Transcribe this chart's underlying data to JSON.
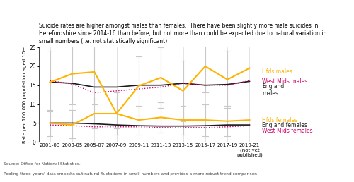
{
  "title": "Suicide rates are higher amongst males than females.  There have been slightly more male suicides in\nHerefordshire since 2014-16 than before, but not more than could be expected due to natural variation in\nsmall numbers (i.e. not statistically significant)",
  "ylabel": "Rate per 100,000 population aged 10+",
  "source_text1": "Source: Office for National Statistics.",
  "source_text2": "Pooling three years' data smooths out natural fluctations in small numbers and provides a more robust trend comparison",
  "x_labels": [
    "2001-03",
    "2003-05",
    "2005-07",
    "2007-09",
    "2009-11",
    "2011-13",
    "2013-15",
    "2015-17",
    "2017-19",
    "2019-21\n(not yet\npublished)"
  ],
  "x_positions": [
    0,
    1,
    2,
    3,
    4,
    5,
    6,
    7,
    8,
    9
  ],
  "ylim": [
    0,
    25
  ],
  "yticks": [
    0,
    5,
    10,
    15,
    20,
    25
  ],
  "hfds_males": [
    15.8,
    18.0,
    18.5,
    7.5,
    14.8,
    17.0,
    13.5,
    20.0,
    16.5,
    19.5
  ],
  "hfds_males_ci_low": [
    8.0,
    10.0,
    10.0,
    2.0,
    7.0,
    9.0,
    5.5,
    13.0,
    9.0,
    null
  ],
  "hfds_males_ci_high": [
    24.0,
    26.0,
    27.0,
    13.0,
    22.5,
    25.0,
    21.5,
    27.0,
    24.0,
    null
  ],
  "england_males": [
    15.8,
    15.5,
    14.5,
    14.5,
    15.0,
    15.0,
    15.5,
    15.0,
    15.2,
    16.0
  ],
  "westmids_males": [
    16.2,
    15.3,
    13.0,
    13.5,
    14.0,
    14.5,
    15.5,
    15.0,
    15.0,
    16.2
  ],
  "hfds_females": [
    5.0,
    4.5,
    7.5,
    7.5,
    5.8,
    6.5,
    5.8,
    5.8,
    5.5,
    5.8
  ],
  "hfds_females_ci_low": [
    1.5,
    1.0,
    3.5,
    3.5,
    2.0,
    2.5,
    2.0,
    1.5,
    1.5,
    null
  ],
  "hfds_females_ci_high": [
    8.5,
    8.5,
    11.5,
    11.5,
    9.5,
    10.5,
    9.5,
    10.0,
    9.5,
    null
  ],
  "england_females": [
    5.0,
    5.0,
    4.8,
    4.5,
    4.3,
    4.2,
    4.2,
    4.3,
    4.5,
    4.5
  ],
  "westmids_females": [
    4.5,
    4.3,
    4.0,
    4.0,
    4.0,
    3.8,
    3.8,
    3.8,
    4.0,
    4.3
  ],
  "color_hfds": "#FFB300",
  "color_england": "#1a1a1a",
  "color_westmids": "#cc0066",
  "color_ci": "#c8c8c8"
}
